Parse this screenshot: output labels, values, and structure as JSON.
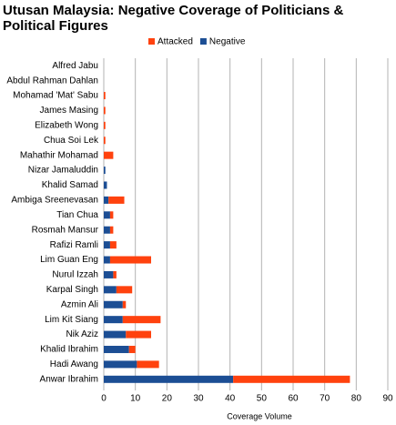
{
  "chart_data": {
    "type": "bar",
    "orientation": "horizontal",
    "stacked": true,
    "title": "Utusan Malaysia: Negative Coverage of Politicians & Political Figures",
    "x_label": "Coverage Volume",
    "categories": [
      "Alfred Jabu",
      "Abdul Rahman Dahlan",
      "Mohamad 'Mat' Sabu",
      "James Masing",
      "Elizabeth Wong",
      "Chua Soi Lek",
      "Mahathir Mohamad",
      "Nizar Jamaluddin",
      "Khalid Samad",
      "Ambiga Sreenevasan",
      "Tian Chua",
      "Rosmah Mansur",
      "Rafizi Ramli",
      "Lim Guan Eng",
      "Nurul Izzah",
      "Karpal Singh",
      "Azmin Ali",
      "Lim Kit Siang",
      "Nik Aziz",
      "Khalid Ibrahim",
      "Hadi Awang",
      "Anwar Ibrahim"
    ],
    "series": [
      {
        "name": "Negative",
        "color": "#1c4e94",
        "values": [
          0,
          0,
          0,
          0,
          0,
          0,
          0,
          0.5,
          1,
          1.5,
          2,
          2,
          2,
          2,
          3,
          4,
          6,
          6,
          7,
          8,
          10.5,
          41
        ]
      },
      {
        "name": "Attacked",
        "color": "#ff420e",
        "values": [
          0,
          0,
          0.5,
          0.5,
          0.5,
          0.5,
          3,
          0,
          0,
          5,
          1,
          1,
          2,
          13,
          1,
          5,
          1,
          12,
          8,
          2,
          7,
          37
        ]
      }
    ],
    "xlim": [
      0,
      90
    ],
    "xticks": [
      0,
      10,
      20,
      30,
      40,
      50,
      60,
      70,
      80,
      90
    ],
    "grid": true,
    "legend": "top"
  }
}
